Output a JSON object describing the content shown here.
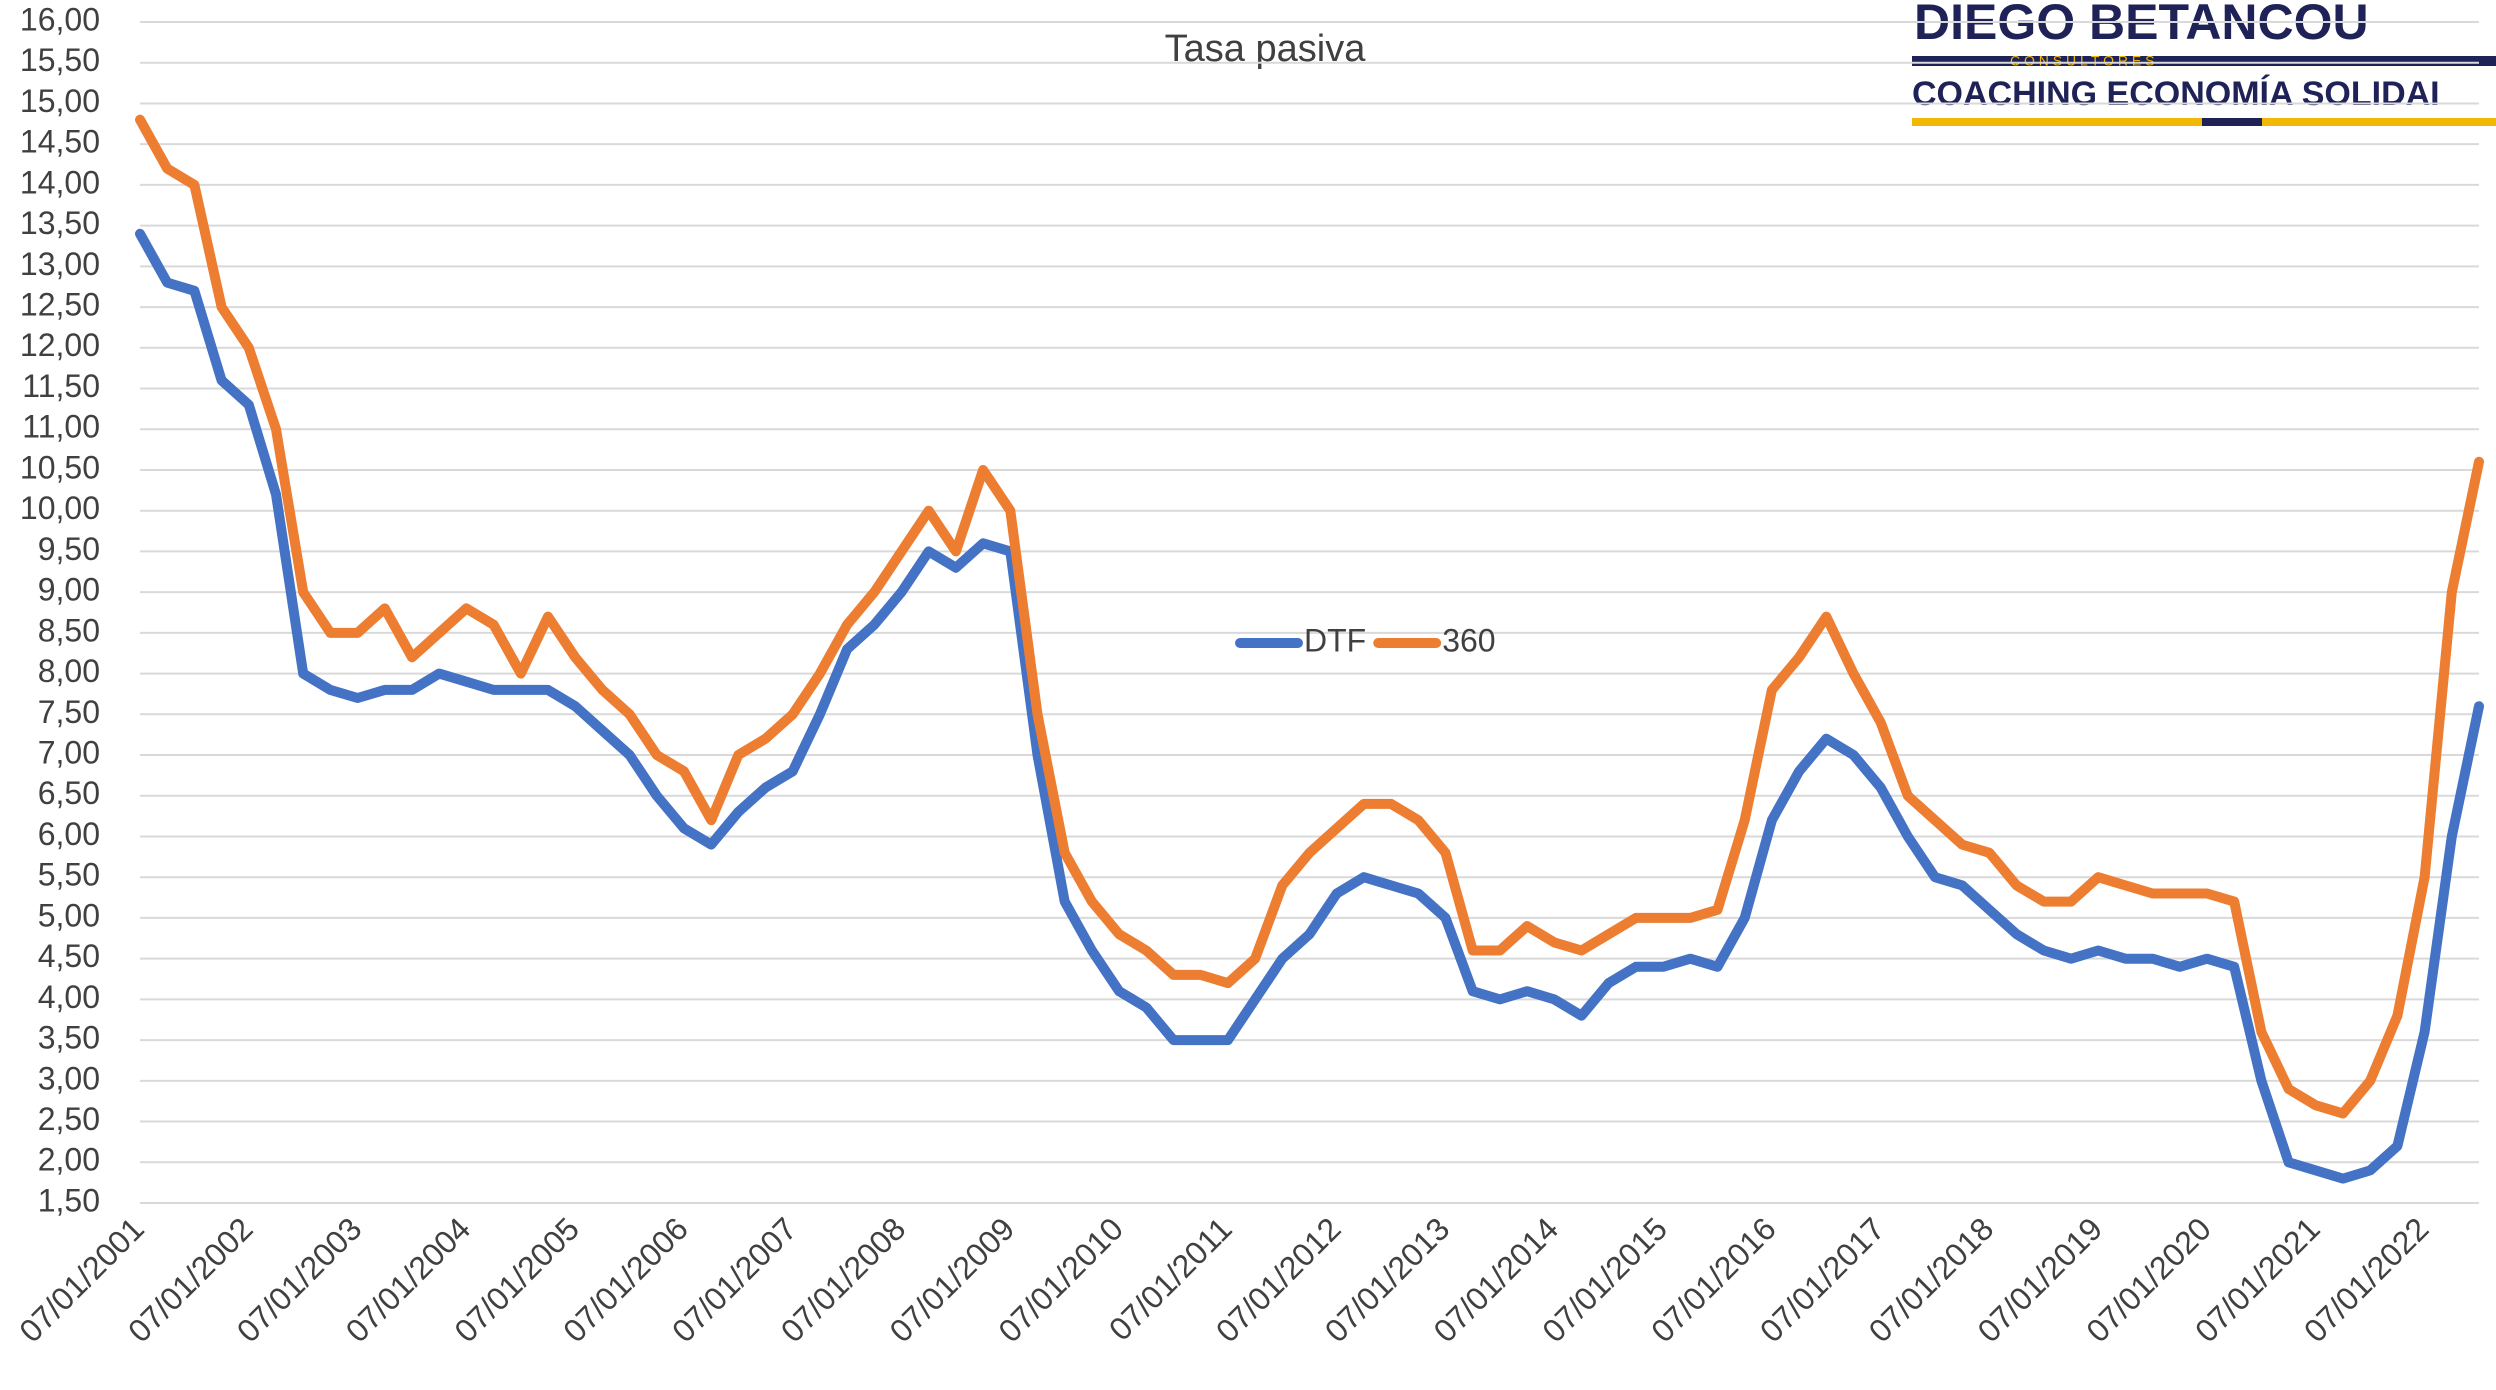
{
  "chart_data": {
    "type": "line",
    "title": "Tasa pasiva",
    "categories": [
      "07/01/2001",
      null,
      null,
      null,
      "07/01/2002",
      null,
      null,
      null,
      "07/01/2003",
      null,
      null,
      null,
      "07/01/2004",
      null,
      null,
      null,
      "07/01/2005",
      null,
      null,
      null,
      "07/01/2006",
      null,
      null,
      null,
      "07/01/2007",
      null,
      null,
      null,
      "07/01/2008",
      null,
      null,
      null,
      "07/01/2009",
      null,
      null,
      null,
      "07/01/2010",
      null,
      null,
      null,
      "07/01/2011",
      null,
      null,
      null,
      "07/01/2012",
      null,
      null,
      null,
      "07/01/2013",
      null,
      null,
      null,
      "07/01/2014",
      null,
      null,
      null,
      "07/01/2015",
      null,
      null,
      null,
      "07/01/2016",
      null,
      null,
      null,
      "07/01/2017",
      null,
      null,
      null,
      "07/01/2018",
      null,
      null,
      null,
      "07/01/2019",
      null,
      null,
      null,
      "07/01/2020",
      null,
      null,
      null,
      "07/01/2021",
      null,
      null,
      null,
      "07/01/2022",
      null,
      null
    ],
    "series": [
      {
        "name": "DTF",
        "color": "#4472c4",
        "values": [
          13.4,
          12.8,
          12.7,
          11.6,
          11.3,
          10.2,
          8.0,
          7.8,
          7.7,
          7.8,
          7.8,
          8.0,
          7.9,
          7.8,
          7.8,
          7.8,
          7.6,
          7.3,
          7.0,
          6.5,
          6.1,
          5.9,
          6.3,
          6.6,
          6.8,
          7.5,
          8.3,
          8.6,
          9.0,
          9.5,
          9.3,
          9.6,
          9.5,
          7.0,
          5.2,
          4.6,
          4.1,
          3.9,
          3.5,
          3.5,
          3.5,
          4.0,
          4.5,
          4.8,
          5.3,
          5.5,
          5.4,
          5.3,
          5.0,
          4.1,
          4.0,
          4.1,
          4.0,
          3.8,
          4.2,
          4.4,
          4.4,
          4.5,
          4.4,
          5.0,
          6.2,
          6.8,
          7.2,
          7.0,
          6.6,
          6.0,
          5.5,
          5.4,
          5.1,
          4.8,
          4.6,
          4.5,
          4.6,
          4.5,
          4.5,
          4.4,
          4.5,
          4.4,
          3.0,
          2.0,
          1.9,
          1.8,
          1.9,
          2.2,
          3.6,
          6.0,
          7.6
        ]
      },
      {
        "name": "360",
        "color": "#ed7d31",
        "values": [
          14.8,
          14.2,
          14.0,
          12.5,
          12.0,
          11.0,
          9.0,
          8.5,
          8.5,
          8.8,
          8.2,
          8.5,
          8.8,
          8.6,
          8.0,
          8.7,
          8.2,
          7.8,
          7.5,
          7.0,
          6.8,
          6.2,
          7.0,
          7.2,
          7.5,
          8.0,
          8.6,
          9.0,
          9.5,
          10.0,
          9.5,
          10.5,
          10.0,
          7.5,
          5.8,
          5.2,
          4.8,
          4.6,
          4.3,
          4.3,
          4.2,
          4.5,
          5.4,
          5.8,
          6.1,
          6.4,
          6.4,
          6.2,
          5.8,
          4.6,
          4.6,
          4.9,
          4.7,
          4.6,
          4.8,
          5.0,
          5.0,
          5.0,
          5.1,
          6.2,
          7.8,
          8.2,
          8.7,
          8.0,
          7.4,
          6.5,
          6.2,
          5.9,
          5.8,
          5.4,
          5.2,
          5.2,
          5.5,
          5.4,
          5.3,
          5.3,
          5.3,
          5.2,
          3.6,
          2.9,
          2.7,
          2.6,
          3.0,
          3.8,
          5.5,
          9.0,
          10.6
        ]
      }
    ],
    "ylim": [
      1.5,
      16
    ],
    "yticks": [
      {
        "value": 1.5,
        "label": "1,50"
      },
      {
        "value": 2,
        "label": "2,00"
      },
      {
        "value": 2.5,
        "label": "2,50"
      },
      {
        "value": 3,
        "label": "3,00"
      },
      {
        "value": 3.5,
        "label": "3,50"
      },
      {
        "value": 4,
        "label": "4,00"
      },
      {
        "value": 4.5,
        "label": "4,50"
      },
      {
        "value": 5,
        "label": "5,00"
      },
      {
        "value": 5.5,
        "label": "5,50"
      },
      {
        "value": 6,
        "label": "6,00"
      },
      {
        "value": 6.5,
        "label": "6,50"
      },
      {
        "value": 7,
        "label": "7,00"
      },
      {
        "value": 7.5,
        "label": "7,50"
      },
      {
        "value": 8,
        "label": "8,00"
      },
      {
        "value": 8.5,
        "label": "8,50"
      },
      {
        "value": 9,
        "label": "9,00"
      },
      {
        "value": 9.5,
        "label": "9,50"
      },
      {
        "value": 10,
        "label": "10,00"
      },
      {
        "value": 10.5,
        "label": "10,50"
      },
      {
        "value": 11,
        "label": "11,00"
      },
      {
        "value": 11.5,
        "label": "11,50"
      },
      {
        "value": 12,
        "label": "12,00"
      },
      {
        "value": 12.5,
        "label": "12,50"
      },
      {
        "value": 13,
        "label": "13,00"
      },
      {
        "value": 13.5,
        "label": "13,50"
      },
      {
        "value": 14,
        "label": "14,00"
      },
      {
        "value": 14.5,
        "label": "14,50"
      },
      {
        "value": 15,
        "label": "15,00"
      },
      {
        "value": 15.5,
        "label": "15,50"
      },
      {
        "value": 16,
        "label": "16,00"
      }
    ],
    "grid": true,
    "legend": "center"
  },
  "logo": {
    "name": "DIEGO BETANCOU",
    "tagline": "C O N S U L T O R E S",
    "subtitle": "COACHING ECONOMÍA SOLIDAI"
  }
}
